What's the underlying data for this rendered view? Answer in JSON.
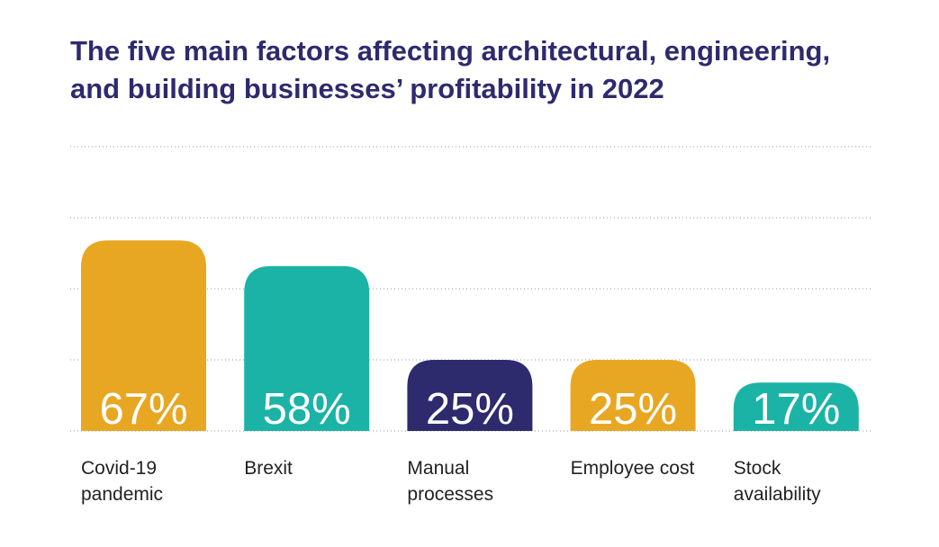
{
  "chart_data": {
    "type": "bar",
    "title": "The five main factors affecting architectural, engineering, and building businesses’ profitability in 2022",
    "categories": [
      "Covid-19 pandemic",
      "Brexit",
      "Manual processes",
      "Employee cost",
      "Stock availability"
    ],
    "values": [
      67,
      58,
      25,
      25,
      17
    ],
    "value_labels": [
      "67%",
      "58%",
      "25%",
      "25%",
      "17%"
    ],
    "colors": [
      "#e8a723",
      "#1bb3a6",
      "#2e2a6e",
      "#e8a723",
      "#1bb3a6"
    ],
    "ylim": [
      0,
      100
    ],
    "yticks": [
      0,
      25,
      50,
      75,
      100
    ],
    "grid": true
  }
}
